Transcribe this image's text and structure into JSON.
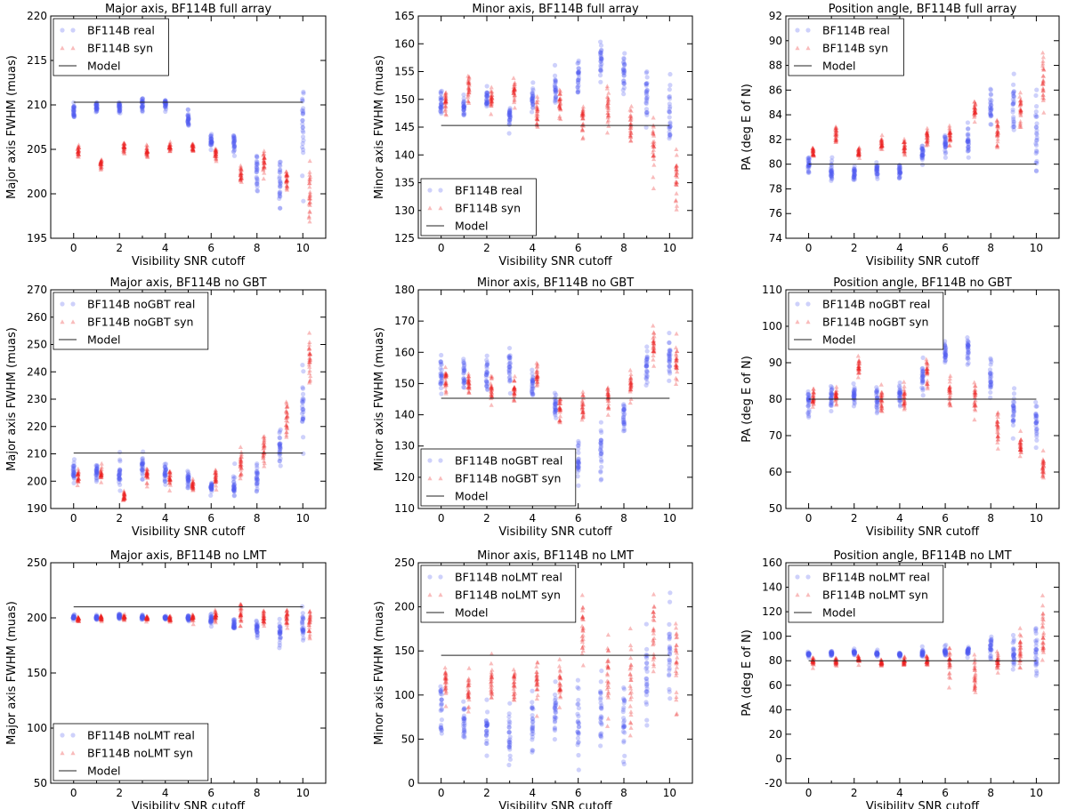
{
  "figure": {
    "x_tick_labels": [
      "0",
      "2",
      "4",
      "6",
      "8",
      "10"
    ],
    "colors": {
      "real": "#4f5bef",
      "syn": "#ec2020",
      "model": "#222222"
    }
  },
  "chart_data": [
    {
      "type": "scatter",
      "title": "Major axis, BF114B full array",
      "xlabel": "Visibility SNR cutoff",
      "ylabel": "Major axis FWHM (muas)",
      "xlim": [
        -1,
        11
      ],
      "ylim": [
        195,
        220
      ],
      "yticks": [
        195,
        200,
        205,
        210,
        215,
        220
      ],
      "legend_loc": "upper-left",
      "model_value": 210.3,
      "legend": [
        "BF114B real",
        "BF114B syn",
        "Model"
      ],
      "series": [
        {
          "name": "BF114B real",
          "marker": "circle",
          "x": [
            0,
            1,
            2,
            3,
            4,
            5,
            6,
            7,
            8,
            9,
            10
          ],
          "center": [
            209.2,
            209.8,
            209.8,
            210.1,
            210.1,
            208.4,
            205.8,
            205.7,
            202.6,
            201.5,
            207.0
          ],
          "spread": [
            0.7,
            0.6,
            0.7,
            0.8,
            0.6,
            0.8,
            1.0,
            1.5,
            2.0,
            2.3,
            5.5
          ]
        },
        {
          "name": "BF114B syn",
          "marker": "triangle",
          "x": [
            0.2,
            1.2,
            2.2,
            3.2,
            4.2,
            5.2,
            6.2,
            7.3,
            8.3,
            9.3,
            10.3
          ],
          "center": [
            204.9,
            203.4,
            205.3,
            204.8,
            205.2,
            205.2,
            204.5,
            202.3,
            203.6,
            201.5,
            200.0
          ],
          "spread": [
            0.6,
            0.5,
            0.5,
            0.5,
            0.5,
            0.5,
            0.7,
            0.9,
            1.2,
            1.3,
            2.5
          ]
        }
      ]
    },
    {
      "type": "scatter",
      "title": "Minor axis, BF114B full array",
      "xlabel": "Visibility SNR cutoff",
      "ylabel": "Minor axis FWHM (muas)",
      "xlim": [
        -1,
        11
      ],
      "ylim": [
        125,
        165
      ],
      "yticks": [
        125,
        130,
        135,
        140,
        145,
        150,
        155,
        160,
        165
      ],
      "legend_loc": "lower-left",
      "model_value": 145.3,
      "legend": [
        "BF114B real",
        "BF114B syn",
        "Model"
      ],
      "series": [
        {
          "name": "BF114B real",
          "marker": "circle",
          "x": [
            0,
            1,
            2,
            3,
            4,
            5,
            6,
            7,
            8,
            9,
            10
          ],
          "center": [
            149.0,
            148.5,
            150.0,
            147.0,
            150.0,
            152.0,
            153.5,
            156.5,
            155.0,
            151.0,
            146.5
          ],
          "spread": [
            2.0,
            2.0,
            2.0,
            2.0,
            2.0,
            2.5,
            3.0,
            3.5,
            4.0,
            5.0,
            5.0
          ]
        },
        {
          "name": "BF114B syn",
          "marker": "triangle",
          "x": [
            0.2,
            1.2,
            2.2,
            3.2,
            4.2,
            5.2,
            6.2,
            7.3,
            8.3,
            9.3,
            10.3
          ],
          "center": [
            149.5,
            151.5,
            150.0,
            151.5,
            147.5,
            149.5,
            147.0,
            148.0,
            145.0,
            141.0,
            137.0
          ],
          "spread": [
            2.0,
            2.0,
            2.0,
            2.0,
            2.5,
            2.5,
            3.0,
            3.5,
            3.5,
            5.0,
            6.0
          ]
        }
      ]
    },
    {
      "type": "scatter",
      "title": "Position angle, BF114B full array",
      "xlabel": "Visibility SNR cutoff",
      "ylabel": "PA (deg E of N)",
      "xlim": [
        -1,
        11
      ],
      "ylim": [
        74,
        92
      ],
      "yticks": [
        74,
        76,
        78,
        80,
        82,
        84,
        86,
        88,
        90,
        92
      ],
      "legend_loc": "upper-left",
      "model_value": 80.0,
      "legend": [
        "BF114B real",
        "BF114B syn",
        "Model"
      ],
      "series": [
        {
          "name": "BF114B real",
          "marker": "circle",
          "x": [
            0,
            1,
            2,
            3,
            4,
            5,
            6,
            7,
            8,
            9,
            10
          ],
          "center": [
            80.0,
            79.6,
            79.2,
            79.5,
            79.5,
            80.8,
            81.5,
            82.0,
            84.5,
            85.0,
            83.0
          ],
          "spread": [
            0.6,
            0.7,
            0.6,
            0.7,
            0.6,
            0.8,
            0.9,
            1.2,
            1.8,
            2.2,
            4.0
          ]
        },
        {
          "name": "BF114B syn",
          "marker": "triangle",
          "x": [
            0.2,
            1.2,
            2.2,
            3.2,
            4.2,
            5.2,
            6.2,
            7.3,
            8.3,
            9.3,
            10.3
          ],
          "center": [
            81.0,
            82.5,
            81.0,
            81.7,
            81.5,
            82.2,
            82.2,
            84.2,
            82.5,
            84.5,
            86.5
          ],
          "spread": [
            0.5,
            0.6,
            0.5,
            0.6,
            0.6,
            0.6,
            0.7,
            0.8,
            1.0,
            1.3,
            2.0
          ]
        }
      ]
    },
    {
      "type": "scatter",
      "title": "Major axis, BF114B no GBT",
      "xlabel": "Visibility SNR cutoff",
      "ylabel": "Major axis FWHM (muas)",
      "xlim": [
        -1,
        11
      ],
      "ylim": [
        190,
        270
      ],
      "yticks": [
        190,
        200,
        210,
        220,
        230,
        240,
        250,
        260,
        270
      ],
      "legend_loc": "upper-left",
      "model_value": 210.3,
      "legend": [
        "BF114B noGBT real",
        "BF114B noGBT syn",
        "Model"
      ],
      "series": [
        {
          "name": "BF114B noGBT real",
          "marker": "circle",
          "x": [
            0,
            1,
            2,
            3,
            4,
            5,
            6,
            7,
            8,
            9,
            10
          ],
          "center": [
            204.0,
            203.5,
            202.0,
            205.0,
            203.0,
            201.0,
            197.5,
            198.0,
            202.0,
            212.0,
            225.0
          ],
          "spread": [
            3.5,
            3.0,
            4.0,
            4.0,
            3.5,
            3.0,
            2.5,
            4.0,
            5.0,
            5.0,
            12.0
          ]
        },
        {
          "name": "BF114B noGBT syn",
          "marker": "triangle",
          "x": [
            0.2,
            1.2,
            2.2,
            3.2,
            4.2,
            5.2,
            6.2,
            7.3,
            8.3,
            9.3,
            10.3
          ],
          "center": [
            201.5,
            202.5,
            194.5,
            202.0,
            201.0,
            198.5,
            200.5,
            206.5,
            212.0,
            222.0,
            246.0
          ],
          "spread": [
            2.5,
            2.5,
            2.0,
            3.0,
            3.0,
            2.5,
            3.5,
            4.5,
            6.0,
            6.0,
            8.0
          ]
        }
      ]
    },
    {
      "type": "scatter",
      "title": "Minor axis, BF114B no GBT",
      "xlabel": "Visibility SNR cutoff",
      "ylabel": "Minor axis FWHM (muas)",
      "xlim": [
        -1,
        11
      ],
      "ylim": [
        110,
        180
      ],
      "yticks": [
        110,
        120,
        130,
        140,
        150,
        160,
        170,
        180
      ],
      "legend_loc": "lower-left",
      "model_value": 145.3,
      "legend": [
        "BF114B noGBT real",
        "BF114B noGBT syn",
        "Model"
      ],
      "series": [
        {
          "name": "BF114B noGBT real",
          "marker": "circle",
          "x": [
            0,
            1,
            2,
            3,
            4,
            5,
            6,
            7,
            8,
            9,
            10
          ],
          "center": [
            153.0,
            153.0,
            152.0,
            155.0,
            150.0,
            142.0,
            125.0,
            127.0,
            140.0,
            155.0,
            157.0
          ],
          "spread": [
            5.0,
            5.0,
            5.0,
            5.0,
            4.0,
            5.0,
            7.0,
            8.0,
            6.0,
            5.0,
            6.0
          ]
        },
        {
          "name": "BF114B noGBT syn",
          "marker": "triangle",
          "x": [
            0.2,
            1.2,
            2.2,
            3.2,
            4.2,
            5.2,
            6.2,
            7.3,
            8.3,
            9.3,
            10.3
          ],
          "center": [
            151.0,
            150.0,
            148.0,
            148.0,
            153.0,
            142.0,
            142.0,
            146.0,
            150.0,
            162.0,
            158.0
          ],
          "spread": [
            3.5,
            3.5,
            4.0,
            4.0,
            4.0,
            4.0,
            5.0,
            4.0,
            5.0,
            5.0,
            5.5
          ]
        }
      ]
    },
    {
      "type": "scatter",
      "title": "Position angle, BF114B no GBT",
      "xlabel": "Visibility SNR cutoff",
      "ylabel": "PA (deg E of N)",
      "xlim": [
        -1,
        11
      ],
      "ylim": [
        50,
        110
      ],
      "yticks": [
        50,
        60,
        70,
        80,
        90,
        100,
        110
      ],
      "legend_loc": "upper-left",
      "model_value": 80.0,
      "legend": [
        "BF114B noGBT real",
        "BF114B noGBT syn",
        "Model"
      ],
      "series": [
        {
          "name": "BF114B noGBT real",
          "marker": "circle",
          "x": [
            0,
            1,
            2,
            3,
            4,
            5,
            6,
            7,
            8,
            9,
            10
          ],
          "center": [
            79.0,
            81.0,
            81.0,
            80.0,
            81.0,
            86.0,
            92.5,
            94.0,
            86.0,
            77.0,
            73.0
          ],
          "spread": [
            4.0,
            3.0,
            3.5,
            4.0,
            3.0,
            3.0,
            3.0,
            4.0,
            4.0,
            5.0,
            6.0
          ]
        },
        {
          "name": "BF114B noGBT syn",
          "marker": "triangle",
          "x": [
            0.2,
            1.2,
            2.2,
            3.2,
            4.2,
            5.2,
            6.2,
            7.3,
            8.3,
            9.3,
            10.3
          ],
          "center": [
            80.0,
            81.0,
            89.0,
            80.0,
            80.0,
            87.0,
            82.0,
            80.0,
            72.0,
            67.0,
            62.0
          ],
          "spread": [
            2.5,
            2.5,
            2.5,
            3.0,
            3.0,
            3.0,
            3.5,
            4.0,
            5.0,
            3.5,
            3.5
          ]
        }
      ]
    },
    {
      "type": "scatter",
      "title": "Major axis, BF114B no LMT",
      "xlabel": "Visibility SNR cutoff",
      "ylabel": "Major axis FWHM (muas)",
      "xlim": [
        -1,
        11
      ],
      "ylim": [
        50,
        250
      ],
      "yticks": [
        50,
        100,
        150,
        200,
        250
      ],
      "legend_loc": "lower-left",
      "model_value": 210.0,
      "legend": [
        "BF114B noLMT real",
        "BF114B noLMT syn",
        "Model"
      ],
      "series": [
        {
          "name": "BF114B noLMT real",
          "marker": "circle",
          "x": [
            0,
            1,
            2,
            3,
            4,
            5,
            6,
            7,
            8,
            9,
            10
          ],
          "center": [
            200.5,
            200.5,
            201.5,
            200.5,
            200.0,
            199.5,
            198.5,
            194.0,
            190.0,
            187.0,
            193.0
          ],
          "spread": [
            2.0,
            2.0,
            2.0,
            2.0,
            2.0,
            3.0,
            4.0,
            5.0,
            7.0,
            10.0,
            18.0
          ]
        },
        {
          "name": "BF114B noLMT syn",
          "marker": "triangle",
          "x": [
            0.2,
            1.2,
            2.2,
            3.2,
            4.2,
            5.2,
            6.2,
            7.3,
            8.3,
            9.3,
            10.3
          ],
          "center": [
            199.5,
            200.0,
            200.5,
            200.0,
            199.5,
            200.0,
            201.0,
            205.0,
            200.0,
            199.0,
            196.0
          ],
          "spread": [
            2.0,
            2.0,
            2.0,
            2.0,
            2.0,
            3.0,
            6.0,
            10.0,
            6.0,
            8.0,
            14.0
          ]
        }
      ]
    },
    {
      "type": "scatter",
      "title": "Minor axis, BF114B no LMT",
      "xlabel": "Visibility SNR cutoff",
      "ylabel": "Minor axis FWHM (muas)",
      "xlim": [
        -1,
        11
      ],
      "ylim": [
        0,
        250
      ],
      "yticks": [
        0,
        50,
        100,
        150,
        200,
        250
      ],
      "legend_loc": "upper-left",
      "model_value": 145.0,
      "legend": [
        "BF114B noLMT real",
        "BF114B noLMT syn",
        "Model"
      ],
      "series": [
        {
          "name": "BF114B noLMT real",
          "marker": "circle",
          "x": [
            0,
            1,
            2,
            3,
            4,
            5,
            6,
            7,
            8,
            9,
            10
          ],
          "center": [
            80.0,
            70.0,
            65.0,
            60.0,
            65.0,
            80.0,
            70.0,
            80.0,
            70.0,
            120.0,
            130.0
          ],
          "spread": [
            30.0,
            30.0,
            30.0,
            30.0,
            30.0,
            35.0,
            40.0,
            45.0,
            50.0,
            55.0,
            60.0
          ]
        },
        {
          "name": "BF114B noLMT syn",
          "marker": "triangle",
          "x": [
            0.2,
            1.2,
            2.2,
            3.2,
            4.2,
            5.2,
            6.2,
            7.3,
            8.3,
            9.3,
            10.3
          ],
          "center": [
            115.0,
            112.0,
            115.0,
            110.0,
            115.0,
            118.0,
            175.0,
            125.0,
            115.0,
            160.0,
            140.0
          ],
          "spread": [
            15.0,
            20.0,
            20.0,
            20.0,
            20.0,
            25.0,
            30.0,
            45.0,
            45.0,
            45.0,
            45.0
          ]
        }
      ]
    },
    {
      "type": "scatter",
      "title": "Position angle, BF114B no LMT",
      "xlabel": "Visibility SNR cutoff",
      "ylabel": "PA (deg E of N)",
      "xlim": [
        -1,
        11
      ],
      "ylim": [
        -20,
        160
      ],
      "yticks": [
        -20,
        0,
        20,
        40,
        60,
        80,
        100,
        120,
        140,
        160
      ],
      "legend_loc": "upper-left",
      "model_value": 80.0,
      "legend": [
        "BF114B noLMT real",
        "BF114B noLMT syn",
        "Model"
      ],
      "series": [
        {
          "name": "BF114B noLMT real",
          "marker": "circle",
          "x": [
            0,
            1,
            2,
            3,
            4,
            5,
            6,
            7,
            8,
            9,
            10
          ],
          "center": [
            85.0,
            86.0,
            87.0,
            86.0,
            85.0,
            86.0,
            88.0,
            88.0,
            90.0,
            88.0,
            92.0
          ],
          "spread": [
            2.0,
            2.0,
            2.0,
            2.0,
            2.0,
            3.0,
            4.0,
            4.0,
            8.0,
            12.0,
            20.0
          ]
        },
        {
          "name": "BF114B noLMT syn",
          "marker": "triangle",
          "x": [
            0.2,
            1.2,
            2.2,
            3.2,
            4.2,
            5.2,
            6.2,
            7.3,
            8.3,
            9.3,
            10.3
          ],
          "center": [
            80.0,
            79.0,
            81.0,
            79.0,
            80.0,
            80.0,
            75.0,
            70.0,
            80.0,
            85.0,
            100.0
          ],
          "spread": [
            3.0,
            3.0,
            3.0,
            3.0,
            3.0,
            4.0,
            15.0,
            18.0,
            6.0,
            15.0,
            22.0
          ]
        }
      ]
    }
  ]
}
